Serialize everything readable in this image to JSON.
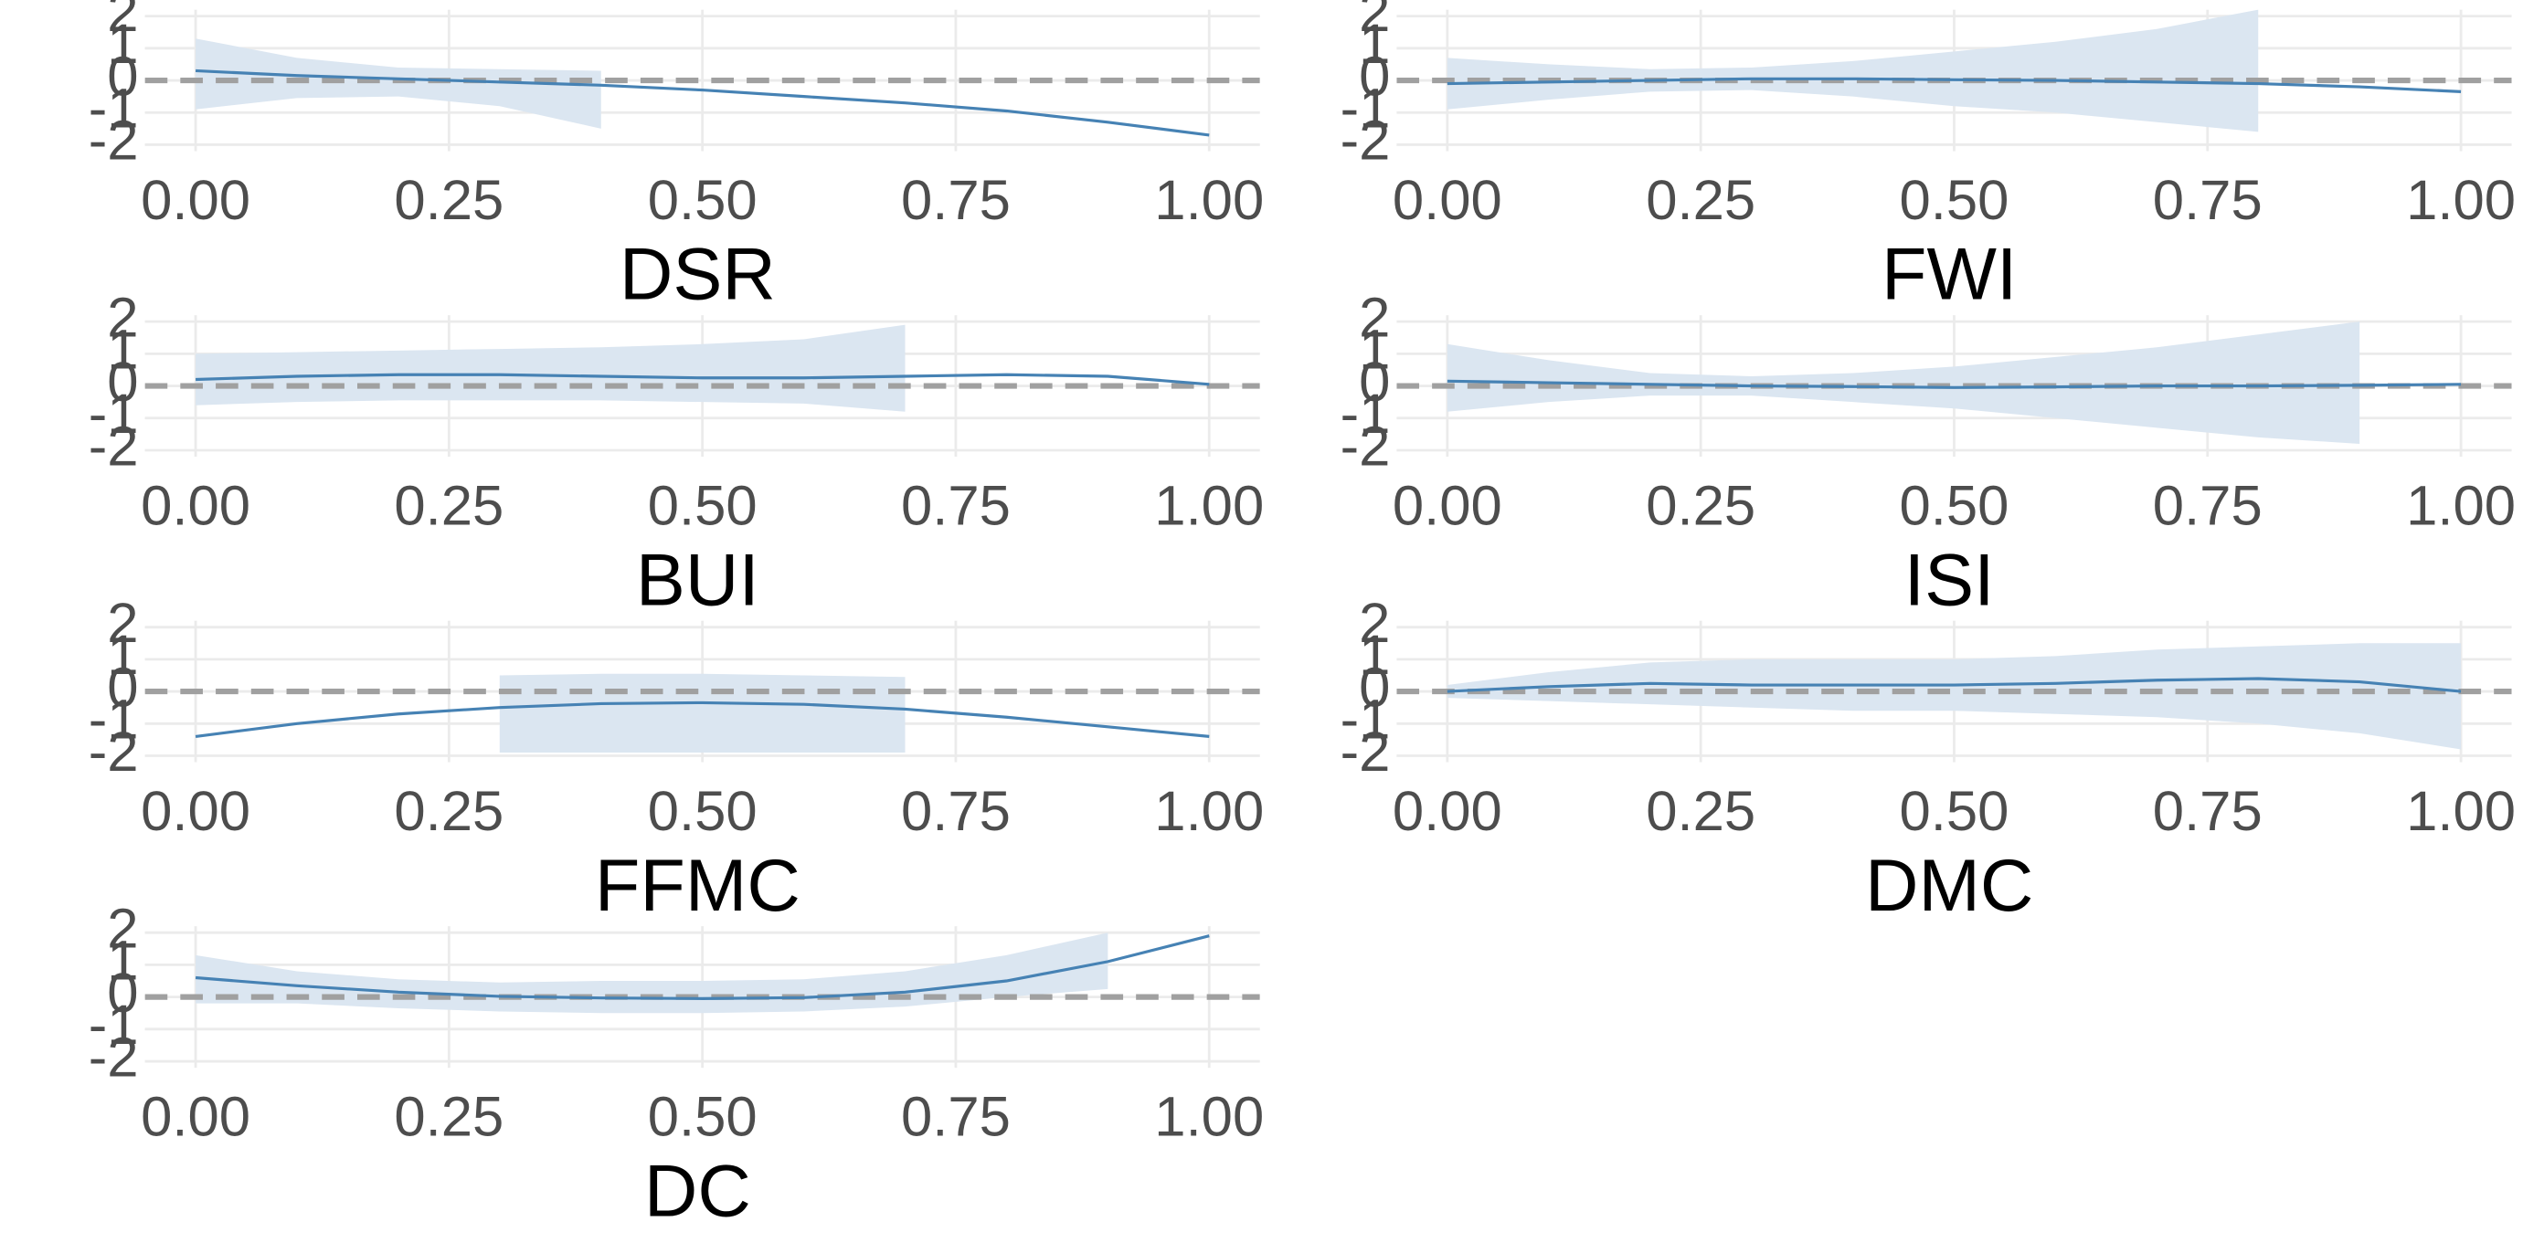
{
  "chart_data": [
    {
      "type": "line",
      "xlabel": "DSR",
      "x": [
        0,
        0.1,
        0.2,
        0.3,
        0.4,
        0.5,
        0.6,
        0.7,
        0.8,
        0.9,
        1
      ],
      "values": [
        0.3,
        0.15,
        0.05,
        -0.05,
        -0.15,
        -0.3,
        -0.5,
        -0.7,
        -0.95,
        -1.3,
        -1.7
      ],
      "upper": [
        1.3,
        0.7,
        0.4,
        0.35,
        0.3,
        null,
        null,
        null,
        null,
        null,
        null
      ],
      "lower": [
        -0.9,
        -0.55,
        -0.5,
        -0.8,
        -1.5,
        null,
        null,
        null,
        null,
        null,
        null
      ],
      "color": "#4682b4",
      "band_color": "#dbe6f1",
      "hline": 0,
      "hline_color": "#a0a0a0",
      "xlim": [
        -0.05,
        1.05
      ],
      "ylim": [
        -2.2,
        2.2
      ],
      "xticks": [
        {
          "value": 0,
          "label": "0.00"
        },
        {
          "value": 0.25,
          "label": "0.25"
        },
        {
          "value": 0.5,
          "label": "0.50"
        },
        {
          "value": 0.75,
          "label": "0.75"
        },
        {
          "value": 1,
          "label": "1.00"
        }
      ],
      "yticks": [
        -2,
        -1,
        0,
        1,
        2
      ]
    },
    {
      "type": "line",
      "xlabel": "FWI",
      "x": [
        0,
        0.1,
        0.2,
        0.3,
        0.4,
        0.5,
        0.6,
        0.7,
        0.8,
        0.9,
        1
      ],
      "values": [
        -0.1,
        -0.05,
        0,
        0.05,
        0.05,
        0.02,
        0,
        -0.05,
        -0.1,
        -0.2,
        -0.35
      ],
      "upper": [
        0.7,
        0.5,
        0.35,
        0.4,
        0.6,
        0.9,
        1.2,
        1.6,
        2.2,
        null,
        null
      ],
      "lower": [
        -0.9,
        -0.6,
        -0.35,
        -0.3,
        -0.5,
        -0.8,
        -1.0,
        -1.3,
        -1.6,
        null,
        null
      ],
      "color": "#4682b4",
      "band_color": "#dbe6f1",
      "hline": 0,
      "hline_color": "#a0a0a0",
      "xlim": [
        -0.05,
        1.05
      ],
      "ylim": [
        -2.2,
        2.2
      ],
      "xticks": [
        {
          "value": 0,
          "label": "0.00"
        },
        {
          "value": 0.25,
          "label": "0.25"
        },
        {
          "value": 0.5,
          "label": "0.50"
        },
        {
          "value": 0.75,
          "label": "0.75"
        },
        {
          "value": 1,
          "label": "1.00"
        }
      ],
      "yticks": [
        -2,
        -1,
        0,
        1,
        2
      ]
    },
    {
      "type": "line",
      "xlabel": "BUI",
      "x": [
        0,
        0.1,
        0.2,
        0.3,
        0.4,
        0.5,
        0.6,
        0.7,
        0.8,
        0.9,
        1
      ],
      "values": [
        0.2,
        0.3,
        0.35,
        0.35,
        0.3,
        0.25,
        0.25,
        0.3,
        0.35,
        0.3,
        0.05
      ],
      "upper": [
        1.0,
        1.05,
        1.1,
        1.15,
        1.2,
        1.3,
        1.45,
        1.9,
        null,
        null,
        null
      ],
      "lower": [
        -0.6,
        -0.5,
        -0.45,
        -0.45,
        -0.45,
        -0.5,
        -0.55,
        -0.8,
        null,
        null,
        null
      ],
      "color": "#4682b4",
      "band_color": "#dbe6f1",
      "hline": 0,
      "hline_color": "#a0a0a0",
      "xlim": [
        -0.05,
        1.05
      ],
      "ylim": [
        -2.2,
        2.2
      ],
      "xticks": [
        {
          "value": 0,
          "label": "0.00"
        },
        {
          "value": 0.25,
          "label": "0.25"
        },
        {
          "value": 0.5,
          "label": "0.50"
        },
        {
          "value": 0.75,
          "label": "0.75"
        },
        {
          "value": 1,
          "label": "1.00"
        }
      ],
      "yticks": [
        -2,
        -1,
        0,
        1,
        2
      ]
    },
    {
      "type": "line",
      "xlabel": "ISI",
      "x": [
        0,
        0.1,
        0.2,
        0.3,
        0.4,
        0.5,
        0.6,
        0.7,
        0.8,
        0.9,
        1
      ],
      "values": [
        0.15,
        0.1,
        0.05,
        0,
        -0.02,
        -0.05,
        -0.03,
        0,
        0,
        0.02,
        0.05
      ],
      "upper": [
        1.3,
        0.8,
        0.4,
        0.3,
        0.4,
        0.6,
        0.9,
        1.2,
        1.6,
        2.0,
        null
      ],
      "lower": [
        -0.8,
        -0.5,
        -0.3,
        -0.3,
        -0.5,
        -0.7,
        -1.0,
        -1.3,
        -1.6,
        -1.8,
        null
      ],
      "color": "#4682b4",
      "band_color": "#dbe6f1",
      "hline": 0,
      "hline_color": "#a0a0a0",
      "xlim": [
        -0.05,
        1.05
      ],
      "ylim": [
        -2.2,
        2.2
      ],
      "xticks": [
        {
          "value": 0,
          "label": "0.00"
        },
        {
          "value": 0.25,
          "label": "0.25"
        },
        {
          "value": 0.5,
          "label": "0.50"
        },
        {
          "value": 0.75,
          "label": "0.75"
        },
        {
          "value": 1,
          "label": "1.00"
        }
      ],
      "yticks": [
        -2,
        -1,
        0,
        1,
        2
      ]
    },
    {
      "type": "line",
      "xlabel": "FFMC",
      "x": [
        0,
        0.1,
        0.2,
        0.3,
        0.4,
        0.5,
        0.6,
        0.7,
        0.8,
        0.9,
        1
      ],
      "values": [
        -1.4,
        -1.0,
        -0.7,
        -0.5,
        -0.38,
        -0.35,
        -0.4,
        -0.55,
        -0.8,
        -1.1,
        -1.4
      ],
      "upper": [
        null,
        null,
        null,
        0.5,
        0.55,
        0.55,
        0.5,
        0.45,
        null,
        null,
        null
      ],
      "lower": [
        null,
        null,
        null,
        -1.9,
        -1.9,
        -1.9,
        -1.9,
        -1.9,
        null,
        null,
        null
      ],
      "color": "#4682b4",
      "band_color": "#dbe6f1",
      "hline": 0,
      "hline_color": "#a0a0a0",
      "xlim": [
        -0.05,
        1.05
      ],
      "ylim": [
        -2.2,
        2.2
      ],
      "xticks": [
        {
          "value": 0,
          "label": "0.00"
        },
        {
          "value": 0.25,
          "label": "0.25"
        },
        {
          "value": 0.5,
          "label": "0.50"
        },
        {
          "value": 0.75,
          "label": "0.75"
        },
        {
          "value": 1,
          "label": "1.00"
        }
      ],
      "yticks": [
        -2,
        -1,
        0,
        1,
        2
      ]
    },
    {
      "type": "line",
      "xlabel": "DMC",
      "x": [
        0,
        0.1,
        0.2,
        0.3,
        0.4,
        0.5,
        0.6,
        0.7,
        0.8,
        0.9,
        1
      ],
      "values": [
        0,
        0.15,
        0.25,
        0.2,
        0.2,
        0.2,
        0.25,
        0.35,
        0.4,
        0.3,
        0
      ],
      "upper": [
        0.2,
        0.6,
        0.9,
        1.0,
        1.0,
        1.0,
        1.1,
        1.3,
        1.4,
        1.5,
        1.5
      ],
      "lower": [
        -0.2,
        -0.3,
        -0.4,
        -0.5,
        -0.6,
        -0.6,
        -0.7,
        -0.8,
        -1.0,
        -1.3,
        -1.8
      ],
      "color": "#4682b4",
      "band_color": "#dbe6f1",
      "hline": 0,
      "hline_color": "#a0a0a0",
      "xlim": [
        -0.05,
        1.05
      ],
      "ylim": [
        -2.2,
        2.2
      ],
      "xticks": [
        {
          "value": 0,
          "label": "0.00"
        },
        {
          "value": 0.25,
          "label": "0.25"
        },
        {
          "value": 0.5,
          "label": "0.50"
        },
        {
          "value": 0.75,
          "label": "0.75"
        },
        {
          "value": 1,
          "label": "1.00"
        }
      ],
      "yticks": [
        -2,
        -1,
        0,
        1,
        2
      ]
    },
    {
      "type": "line",
      "xlabel": "DC",
      "x": [
        0,
        0.1,
        0.2,
        0.3,
        0.4,
        0.5,
        0.6,
        0.7,
        0.8,
        0.9,
        1
      ],
      "values": [
        0.6,
        0.35,
        0.15,
        0.02,
        -0.03,
        -0.05,
        -0.02,
        0.15,
        0.5,
        1.1,
        1.9
      ],
      "upper": [
        1.3,
        0.8,
        0.55,
        0.45,
        0.5,
        0.5,
        0.55,
        0.8,
        1.3,
        2.0,
        null
      ],
      "lower": [
        -0.2,
        -0.2,
        -0.35,
        -0.45,
        -0.5,
        -0.5,
        -0.45,
        -0.3,
        0,
        0.25,
        null
      ],
      "color": "#4682b4",
      "band_color": "#dbe6f1",
      "hline": 0,
      "hline_color": "#a0a0a0",
      "xlim": [
        -0.05,
        1.05
      ],
      "ylim": [
        -2.2,
        2.2
      ],
      "xticks": [
        {
          "value": 0,
          "label": "0.00"
        },
        {
          "value": 0.25,
          "label": "0.25"
        },
        {
          "value": 0.5,
          "label": "0.50"
        },
        {
          "value": 0.75,
          "label": "0.75"
        },
        {
          "value": 1,
          "label": "1.00"
        }
      ],
      "yticks": [
        -2,
        -1,
        0,
        1,
        2
      ]
    }
  ]
}
